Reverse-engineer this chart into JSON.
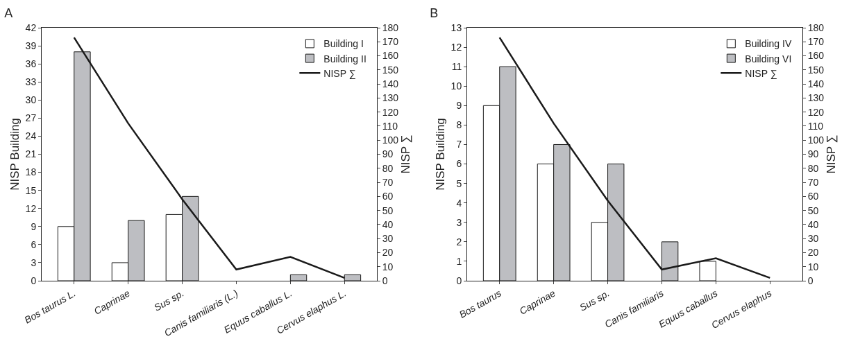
{
  "chart_data": [
    {
      "type": "bar",
      "title": "A",
      "ylabel": "NISP Building",
      "y2label": "NISP ∑",
      "categories": [
        "Bos taurus L.",
        "Caprinae",
        "Sus sp.",
        "Canis familiaris (L.)",
        "Equus caballus L.",
        "Cervus elaphus L."
      ],
      "series": [
        {
          "name": "Building I",
          "color": "#ffffff",
          "values": [
            9,
            3,
            11,
            0,
            0,
            0
          ]
        },
        {
          "name": "Building II",
          "color": "#bdbec2",
          "values": [
            38,
            10,
            14,
            0,
            1,
            1
          ]
        },
        {
          "name": "NISP ∑",
          "type": "line",
          "axis": "y2",
          "color": "#1a1a1a",
          "values": [
            173,
            112,
            58,
            8,
            17,
            2
          ]
        }
      ],
      "ylim": [
        0,
        42
      ],
      "yticks": [
        0,
        3,
        6,
        9,
        12,
        15,
        18,
        21,
        24,
        27,
        30,
        33,
        36,
        39,
        42
      ],
      "y2lim": [
        0,
        180
      ],
      "y2ticks": [
        0,
        10,
        20,
        30,
        40,
        50,
        60,
        70,
        80,
        90,
        100,
        110,
        120,
        130,
        140,
        150,
        160,
        170,
        180
      ],
      "grid": false,
      "legend": "top right",
      "marker": "none",
      "line_style": "solid"
    },
    {
      "type": "bar",
      "title": "B",
      "ylabel": "NISP Building",
      "y2label": "NISP ∑",
      "categories": [
        "Bos taurus",
        "Caprinae",
        "Sus sp.",
        "Canis familiaris",
        "Equus caballus",
        "Cervus elaphus"
      ],
      "series": [
        {
          "name": "Building IV",
          "color": "#ffffff",
          "values": [
            9,
            6,
            3,
            0,
            1,
            0
          ]
        },
        {
          "name": "Building VI",
          "color": "#bdbec2",
          "values": [
            11,
            7,
            6,
            2,
            0,
            0
          ]
        },
        {
          "name": "NISP ∑",
          "type": "line",
          "axis": "y2",
          "color": "#1a1a1a",
          "values": [
            173,
            112,
            57,
            8,
            16,
            2
          ]
        }
      ],
      "ylim": [
        0,
        13
      ],
      "yticks": [
        0,
        1,
        2,
        3,
        4,
        5,
        6,
        7,
        8,
        9,
        10,
        11,
        12,
        13
      ],
      "y2lim": [
        0,
        180
      ],
      "y2ticks": [
        0,
        10,
        20,
        30,
        40,
        50,
        60,
        70,
        80,
        90,
        100,
        110,
        120,
        130,
        140,
        150,
        160,
        170,
        180
      ],
      "grid": false,
      "legend": "top right",
      "marker": "none",
      "line_style": "solid"
    }
  ]
}
